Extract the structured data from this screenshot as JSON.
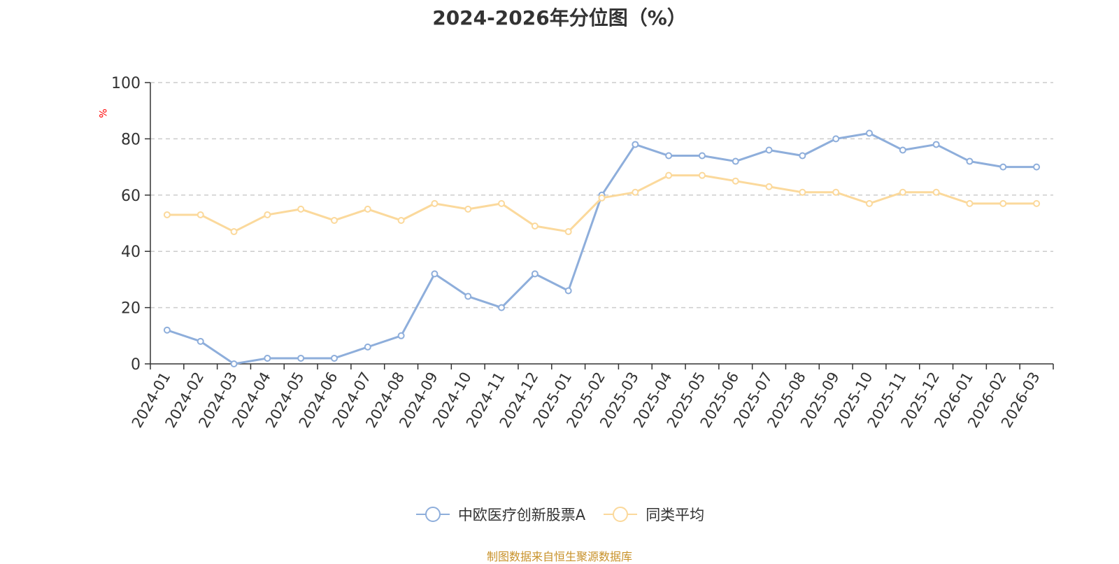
{
  "colors": {
    "series_a": "#8eaedb",
    "series_b": "#fbd99c",
    "axis": "#333333",
    "grid": "#cccccc",
    "unit": "#ff0000",
    "source": "#c8922a"
  },
  "chart_data": {
    "type": "line",
    "title": "2024-2026年分位图（%）",
    "ylabel": "%",
    "ylim": [
      0,
      100
    ],
    "yticks": [
      0,
      20,
      40,
      60,
      80,
      100
    ],
    "grid": true,
    "legend_position": "bottom",
    "categories": [
      "2024-01",
      "2024-02",
      "2024-03",
      "2024-04",
      "2024-05",
      "2024-06",
      "2024-07",
      "2024-08",
      "2024-09",
      "2024-10",
      "2024-11",
      "2024-12",
      "2025-01",
      "2025-02",
      "2025-03",
      "2025-04",
      "2025-05",
      "2025-06",
      "2025-07",
      "2025-08",
      "2025-09",
      "2025-10",
      "2025-11",
      "2025-12",
      "2026-01",
      "2026-02",
      "2026-03"
    ],
    "series": [
      {
        "name": "中欧医疗创新股票A",
        "color": "#8eaedb",
        "values": [
          12,
          8,
          0,
          2,
          2,
          2,
          6,
          10,
          32,
          24,
          20,
          32,
          26,
          60,
          78,
          74,
          74,
          72,
          76,
          74,
          80,
          82,
          76,
          78,
          72,
          70,
          70
        ]
      },
      {
        "name": "同类平均",
        "color": "#fbd99c",
        "values": [
          53,
          53,
          47,
          53,
          55,
          51,
          55,
          51,
          57,
          55,
          57,
          49,
          47,
          59,
          61,
          67,
          67,
          65,
          63,
          61,
          61,
          57,
          61,
          61,
          57,
          57,
          57
        ]
      }
    ]
  },
  "source_text": "制图数据来自恒生聚源数据库"
}
